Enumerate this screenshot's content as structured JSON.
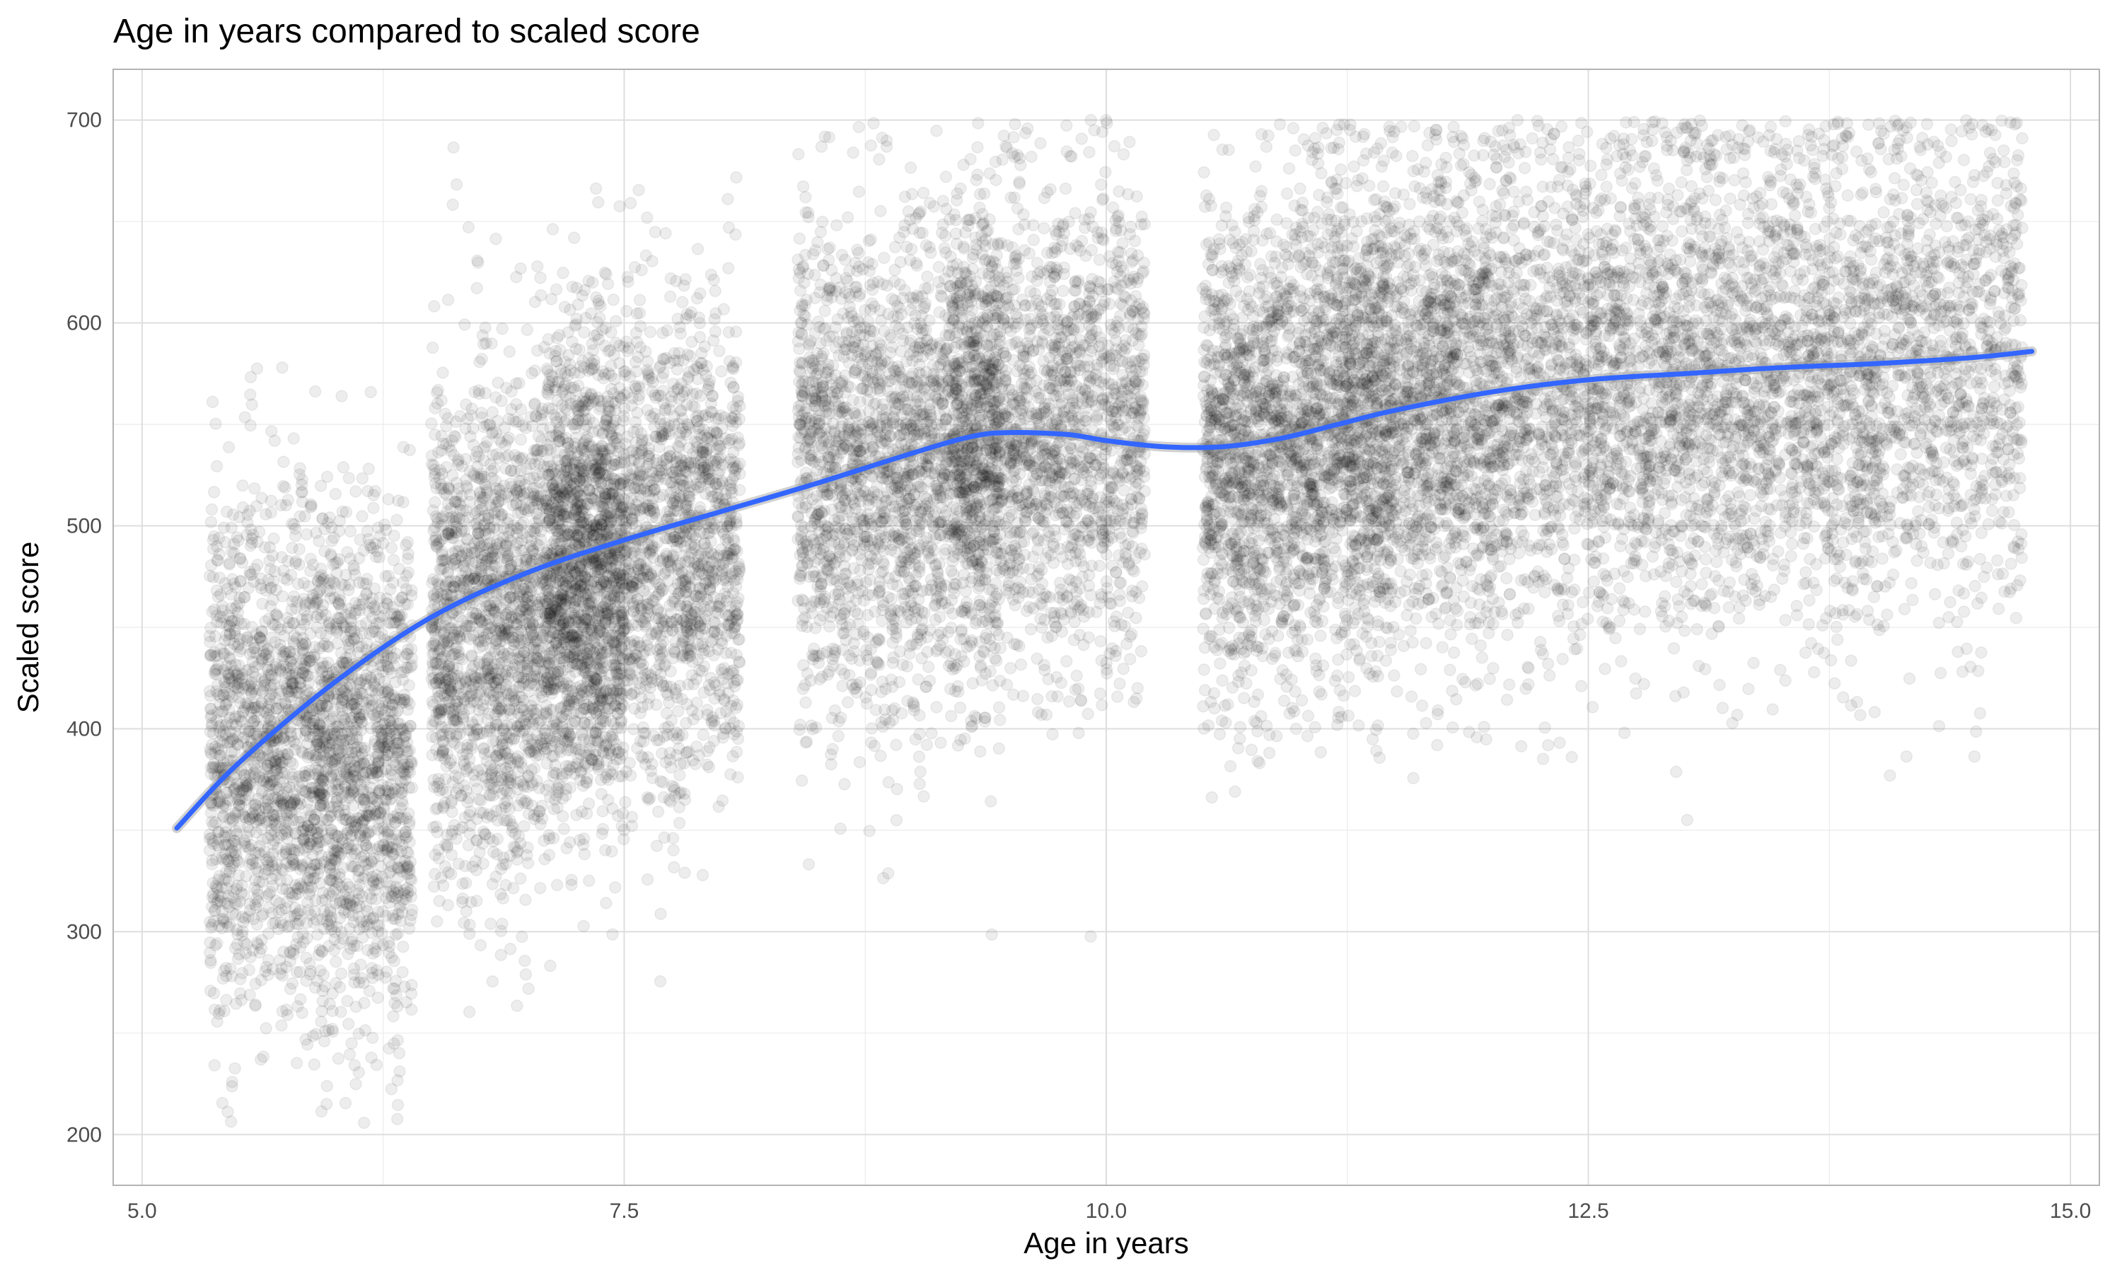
{
  "chart_data": {
    "type": "scatter",
    "title": "Age in years compared to scaled score",
    "xlabel": "Age in years",
    "ylabel": "Scaled score",
    "xlim": [
      4.85,
      15.15
    ],
    "ylim": [
      175,
      725
    ],
    "x_ticks": [
      5.0,
      7.5,
      10.0,
      12.5,
      15.0
    ],
    "x_tick_labels": [
      "5.0",
      "7.5",
      "10.0",
      "12.5",
      "15.0"
    ],
    "y_ticks": [
      200,
      300,
      400,
      500,
      600,
      700
    ],
    "y_tick_labels": [
      "200",
      "300",
      "400",
      "500",
      "600",
      "700"
    ],
    "grid": true,
    "legend": "none",
    "point_color": "#000000",
    "point_alpha": 0.07,
    "smooth_color": "#3366FF",
    "point_groups": [
      {
        "x_range": [
          5.35,
          6.4
        ],
        "y_mean": 385,
        "y_sd": 62,
        "count": 2600
      },
      {
        "x_range": [
          6.5,
          7.1
        ],
        "y_mean": 452,
        "y_sd": 62,
        "count": 1600
      },
      {
        "x_range": [
          7.1,
          7.5
        ],
        "y_mean": 478,
        "y_sd": 60,
        "count": 1700
      },
      {
        "x_range": [
          7.5,
          8.1
        ],
        "y_mean": 490,
        "y_sd": 60,
        "count": 1300
      },
      {
        "x_range": [
          8.4,
          9.2
        ],
        "y_mean": 528,
        "y_sd": 60,
        "count": 1700
      },
      {
        "x_range": [
          9.2,
          9.45
        ],
        "y_mean": 545,
        "y_sd": 55,
        "count": 900
      },
      {
        "x_range": [
          9.45,
          10.2
        ],
        "y_mean": 545,
        "y_sd": 58,
        "count": 1400
      },
      {
        "x_range": [
          10.5,
          11.0
        ],
        "y_mean": 535,
        "y_sd": 60,
        "count": 1300
      },
      {
        "x_range": [
          11.0,
          11.5
        ],
        "y_mean": 550,
        "y_sd": 60,
        "count": 1500
      },
      {
        "x_range": [
          11.5,
          12.1
        ],
        "y_mean": 565,
        "y_sd": 60,
        "count": 1400
      },
      {
        "x_range": [
          12.1,
          14.0
        ],
        "y_mean": 572,
        "y_sd": 62,
        "count": 3300
      },
      {
        "x_range": [
          14.0,
          14.75
        ],
        "y_mean": 580,
        "y_sd": 62,
        "count": 1000
      }
    ],
    "smooth_line": {
      "x": [
        5.18,
        5.5,
        6.0,
        6.5,
        7.0,
        7.5,
        8.0,
        8.5,
        9.0,
        9.3,
        9.5,
        9.8,
        10.0,
        10.3,
        10.6,
        10.9,
        11.2,
        11.5,
        12.0,
        12.5,
        13.0,
        13.5,
        14.0,
        14.5,
        14.8
      ],
      "y": [
        351,
        383,
        423,
        455,
        477,
        493,
        507,
        521,
        536,
        544,
        546,
        545,
        542,
        539,
        539,
        543,
        550,
        557,
        566,
        572,
        575,
        578,
        580,
        583,
        586
      ]
    }
  }
}
